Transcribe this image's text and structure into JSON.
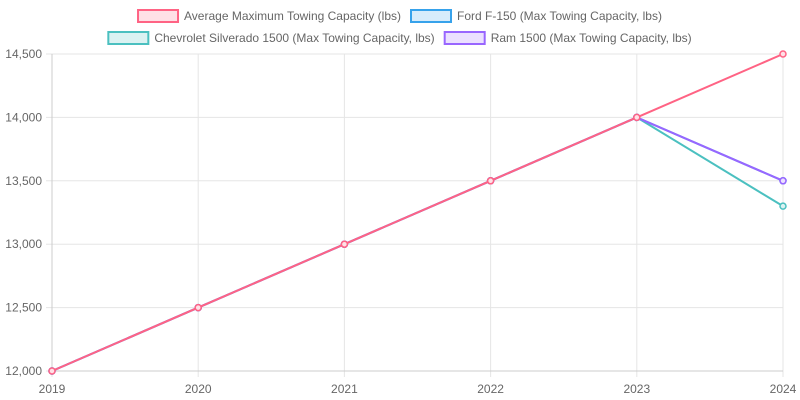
{
  "chart_data": {
    "type": "line",
    "x": [
      "2019",
      "2020",
      "2021",
      "2022",
      "2023",
      "2024"
    ],
    "ylim": [
      12000,
      14500
    ],
    "yticks": [
      12000,
      12500,
      13000,
      13500,
      14000,
      14500
    ],
    "ytick_labels": [
      "12,000",
      "12,500",
      "13,000",
      "13,500",
      "14,000",
      "14,500"
    ],
    "grid": true,
    "legend_position": "top",
    "series": [
      {
        "name": "Average Maximum Towing Capacity (lbs)",
        "values": [
          12000,
          12500,
          13000,
          13500,
          14000,
          14500
        ],
        "color": "#ff6384",
        "fill": "#ffe0e6"
      },
      {
        "name": "Ford F-150 (Max Towing Capacity, lbs)",
        "values": [
          12000,
          12500,
          13000,
          13500,
          14000,
          13500
        ],
        "color": "#36a2eb",
        "fill": "#d7ecfb"
      },
      {
        "name": "Chevrolet Silverado 1500 (Max Towing Capacity, lbs)",
        "values": [
          12000,
          12500,
          13000,
          13500,
          14000,
          13300
        ],
        "color": "#4bc0c0",
        "fill": "#dbf2f2"
      },
      {
        "name": "Ram 1500 (Max Towing Capacity, lbs)",
        "values": [
          12000,
          12500,
          13000,
          13500,
          14000,
          13500
        ],
        "color": "#9966ff",
        "fill": "#ebe0ff"
      }
    ],
    "draw_order": [
      2,
      1,
      3,
      0
    ]
  }
}
